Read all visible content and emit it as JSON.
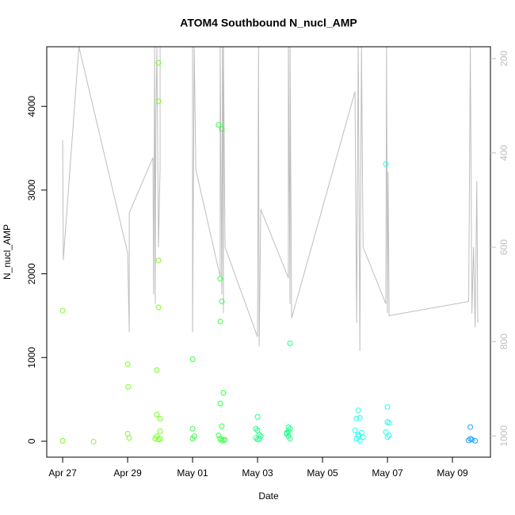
{
  "chart_data": {
    "type": "scatter",
    "title": "ATOM4 Southbound N_nucl_AMP",
    "x_label": "Date",
    "y_label": "N_nucl_AMP",
    "xlim": [
      -0.49,
      13.17
    ],
    "ylim": [
      -190,
      4712
    ],
    "y2lim": [
      1045,
      175
    ],
    "xticks": [
      {
        "value": 0,
        "label": "Apr 27"
      },
      {
        "value": 2,
        "label": "Apr 29"
      },
      {
        "value": 4,
        "label": "May 01"
      },
      {
        "value": 6,
        "label": "May 03"
      },
      {
        "value": 8,
        "label": "May 05"
      },
      {
        "value": 10,
        "label": "May 07"
      },
      {
        "value": 12,
        "label": "May 09"
      }
    ],
    "yticks": [
      0,
      1000,
      2000,
      3000,
      4000
    ],
    "y2ticks": [
      200,
      400,
      600,
      800,
      1000
    ],
    "y2_color": "#bebebe",
    "series": [
      {
        "mode": "line",
        "axis": "y2",
        "color": "#bebebe",
        "x": [
          0,
          0.02,
          0.5,
          2.0,
          2.05,
          2.05,
          2.78,
          2.8,
          2.83,
          2.85,
          2.87,
          2.9,
          2.95,
          3.0,
          3.0,
          4.0,
          4.0,
          4.05,
          4.1,
          4.85,
          4.85,
          4.9,
          4.92,
          4.95,
          4.95,
          5.0,
          6.0,
          6.03,
          6.05,
          6.1,
          6.95,
          6.95,
          7.0,
          7.0,
          7.05,
          9.0,
          9.05,
          9.1,
          9.15,
          9.2,
          9.25,
          9.95,
          9.97,
          10.0,
          10.02,
          10.05,
          12.5,
          12.55,
          12.6,
          12.65,
          12.7,
          12.75,
          12.78
        ],
        "values": [
          373,
          627,
          175,
          612,
          780,
          527,
          410,
          700,
          175,
          720,
          330,
          175,
          600,
          430,
          175,
          175,
          780,
          175,
          435,
          663,
          175,
          700,
          175,
          740,
          175,
          600,
          790,
          175,
          810,
          520,
          665,
          175,
          720,
          175,
          750,
          270,
          760,
          175,
          820,
          175,
          600,
          720,
          175,
          740,
          440,
          745,
          715,
          175,
          740,
          600,
          770,
          460,
          760
        ]
      },
      {
        "mode": "points",
        "color": "#77ff22",
        "x": [
          0,
          0,
          0.95,
          2,
          2.02,
          2,
          2.05,
          2.9,
          2.9,
          2.95,
          2.95,
          2.95,
          2.95,
          2.9,
          2.85,
          2.95,
          3.0,
          3.0,
          3.0
        ],
        "values": [
          1560,
          5,
          -5,
          920,
          650,
          90,
          40,
          850,
          320,
          1600,
          2160,
          4060,
          4520,
          60,
          30,
          20,
          270,
          120,
          30
        ]
      },
      {
        "mode": "points",
        "color": "#33ff44",
        "x": [
          4,
          4,
          4.05,
          4,
          4.8,
          4.9,
          4.85,
          4.9,
          4.85,
          4.95,
          4.85,
          4.9,
          4.8,
          4.85,
          4.9,
          4.95,
          5.0
        ],
        "values": [
          980,
          150,
          60,
          30,
          3780,
          3730,
          1940,
          1670,
          1430,
          580,
          450,
          180,
          70,
          30,
          10,
          20,
          15
        ]
      },
      {
        "mode": "points",
        "color": "#22ff88",
        "x": [
          6.0,
          5.95,
          6.0,
          6.05,
          6.1,
          5.95,
          6.0,
          6.05,
          7.0,
          6.95,
          7.0,
          6.95,
          6.9,
          6.95,
          7.0,
          6.9
        ],
        "values": [
          290,
          150,
          130,
          80,
          60,
          40,
          20,
          30,
          1170,
          170,
          150,
          120,
          90,
          60,
          30,
          100
        ]
      },
      {
        "mode": "points",
        "color": "#22ffee",
        "x": [
          9.1,
          9.05,
          9.15,
          9.0,
          9.1,
          9.2,
          9.25,
          9.05,
          9.15,
          9.1,
          9.95,
          10,
          10,
          10.05,
          9.95,
          10.05,
          10
        ],
        "values": [
          370,
          270,
          280,
          130,
          80,
          100,
          50,
          30,
          10,
          60,
          3310,
          410,
          230,
          220,
          110,
          70,
          50
        ]
      },
      {
        "mode": "points",
        "color": "#1aa3ff",
        "x": [
          12.55,
          12.5,
          12.6,
          12.7,
          12.55
        ],
        "values": [
          170,
          10,
          20,
          5,
          30
        ]
      }
    ]
  }
}
